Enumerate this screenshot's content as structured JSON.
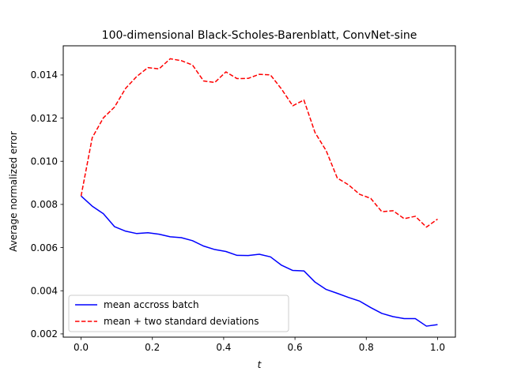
{
  "chart_data": {
    "type": "line",
    "title": "100-dimensional Black-Scholes-Barenblatt, ConvNet-sine",
    "xlabel": "t",
    "ylabel": "Average normalized error",
    "xlim": [
      -0.05,
      1.05
    ],
    "ylim": [
      0.00185,
      0.01535
    ],
    "x_ticks": [
      0.0,
      0.2,
      0.4,
      0.6,
      0.8,
      1.0
    ],
    "x_tick_labels": [
      "0.0",
      "0.2",
      "0.4",
      "0.6",
      "0.8",
      "1.0"
    ],
    "y_ticks": [
      0.002,
      0.004,
      0.006,
      0.008,
      0.01,
      0.012,
      0.014
    ],
    "y_tick_labels": [
      "0.002",
      "0.004",
      "0.006",
      "0.008",
      "0.010",
      "0.012",
      "0.014"
    ],
    "grid": false,
    "legend_position": "lower-left",
    "x": [
      0.0,
      0.03125,
      0.0625,
      0.09375,
      0.125,
      0.15625,
      0.1875,
      0.21875,
      0.25,
      0.28125,
      0.3125,
      0.34375,
      0.375,
      0.40625,
      0.4375,
      0.46875,
      0.5,
      0.53125,
      0.5625,
      0.59375,
      0.625,
      0.65625,
      0.6875,
      0.71875,
      0.75,
      0.78125,
      0.8125,
      0.84375,
      0.875,
      0.90625,
      0.9375,
      0.96875,
      1.0
    ],
    "series": [
      {
        "name": "mean accross batch",
        "color": "#0000ff",
        "dash": "solid",
        "values": [
          0.00839,
          0.00792,
          0.00757,
          0.00697,
          0.00676,
          0.00665,
          0.00669,
          0.00662,
          0.0065,
          0.00646,
          0.00632,
          0.00607,
          0.00591,
          0.00582,
          0.00564,
          0.00563,
          0.00569,
          0.00557,
          0.00518,
          0.00494,
          0.00492,
          0.0044,
          0.00406,
          0.00388,
          0.00369,
          0.00352,
          0.00322,
          0.00295,
          0.0028,
          0.00271,
          0.00271,
          0.00236,
          0.00243
        ]
      },
      {
        "name": "mean + two standard deviations",
        "color": "#ff0000",
        "dash": "dashed",
        "values": [
          0.00839,
          0.01109,
          0.01201,
          0.01251,
          0.01338,
          0.01393,
          0.01434,
          0.01428,
          0.01475,
          0.01466,
          0.01446,
          0.01372,
          0.01365,
          0.01414,
          0.01383,
          0.01384,
          0.01403,
          0.014,
          0.01334,
          0.01257,
          0.01284,
          0.01133,
          0.01049,
          0.00922,
          0.00891,
          0.00847,
          0.00828,
          0.00766,
          0.00771,
          0.00734,
          0.00745,
          0.00695,
          0.00732
        ]
      }
    ]
  }
}
